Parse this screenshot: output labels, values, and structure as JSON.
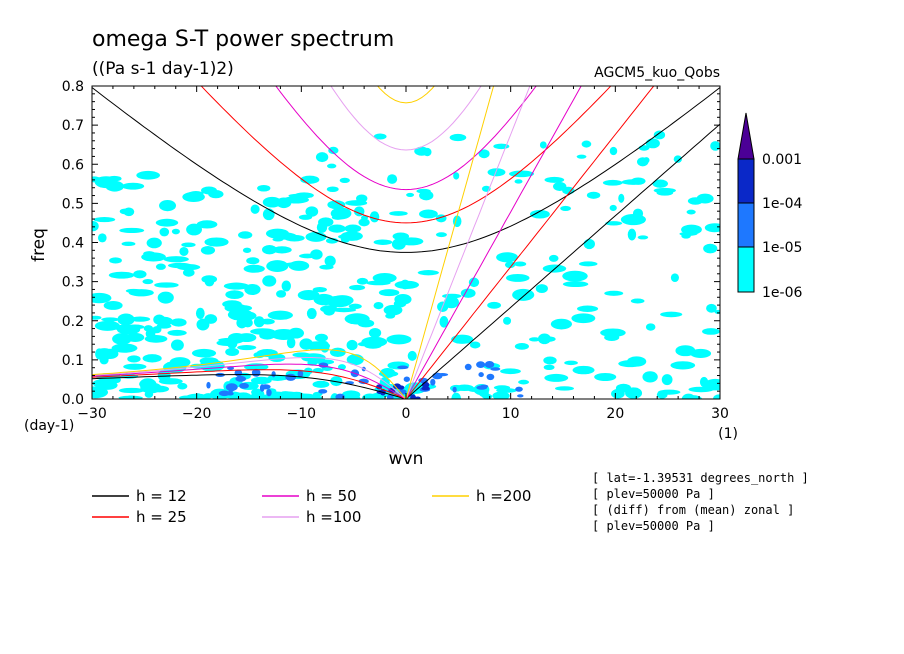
{
  "chart_data": {
    "type": "contour",
    "title": "omega S-T power spectrum",
    "subtitle": "((Pa s-1 day-1)2)",
    "dataset_label": "AGCM5_kuo_Qobs",
    "xlabel": "wvn",
    "ylabel": "freq",
    "x_unit": "(1)",
    "y_unit": "(day-1)",
    "xlim": [
      -30,
      30
    ],
    "ylim": [
      0,
      0.8
    ],
    "x_ticks": [
      -30,
      -20,
      -10,
      0,
      10,
      20,
      30
    ],
    "y_ticks": [
      0.0,
      0.1,
      0.2,
      0.3,
      0.4,
      0.5,
      0.6,
      0.7,
      0.8
    ],
    "colorbar": {
      "levels": [
        "1e-06",
        "1e-05",
        "1e-04",
        "0.001"
      ],
      "colors": [
        "#00ffff",
        "#1e78ff",
        "#0a28c8",
        "#4b0096"
      ]
    },
    "dispersion_curves": [
      {
        "label": "h = 12",
        "h": 12,
        "color": "#000000"
      },
      {
        "label": "h = 25",
        "h": 25,
        "color": "#ff0000"
      },
      {
        "label": "h = 50",
        "h": 50,
        "color": "#e600c8"
      },
      {
        "label": "h =100",
        "h": 100,
        "color": "#e6a0f0"
      },
      {
        "label": "h =200",
        "h": 200,
        "color": "#ffd000"
      }
    ],
    "annotations": [
      "[ lat=-1.39531 degrees_north ]",
      "[ plev=50000 Pa ]",
      "[ (diff) from (mean) zonal ]",
      "[ plev=50000 Pa ]"
    ]
  }
}
